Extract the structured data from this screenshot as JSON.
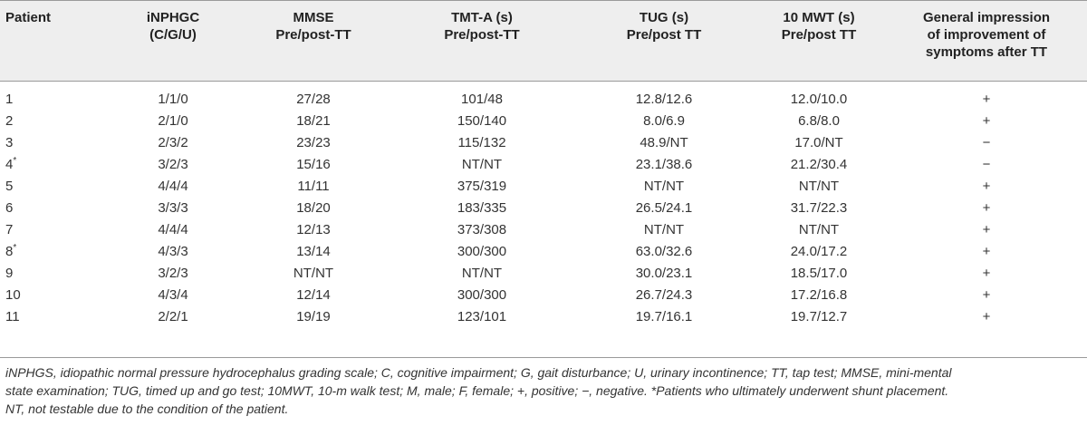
{
  "table": {
    "headers": [
      {
        "line1": "Patient",
        "line2": "",
        "line3": ""
      },
      {
        "line1": "iNPHGC",
        "line2": "(C/G/U)",
        "line3": ""
      },
      {
        "line1": "MMSE",
        "line2": "Pre/post-TT",
        "line3": ""
      },
      {
        "line1": "TMT-A (s)",
        "line2": "Pre/post-TT",
        "line3": ""
      },
      {
        "line1": "TUG (s)",
        "line2": "Pre/post TT",
        "line3": ""
      },
      {
        "line1": "10 MWT (s)",
        "line2": "Pre/post TT",
        "line3": ""
      },
      {
        "line1": "General impression",
        "line2": "of improvement of",
        "line3": "symptoms after TT"
      }
    ],
    "rows": [
      {
        "patient": "1",
        "mark": "",
        "inphgc": "1/1/0",
        "mmse": "27/28",
        "tmta": "101/48",
        "tug": "12.8/12.6",
        "mwt": "12.0/10.0",
        "impression": "+"
      },
      {
        "patient": "2",
        "mark": "",
        "inphgc": "2/1/0",
        "mmse": "18/21",
        "tmta": "150/140",
        "tug": "8.0/6.9",
        "mwt": "6.8/8.0",
        "impression": "+"
      },
      {
        "patient": "3",
        "mark": "",
        "inphgc": "2/3/2",
        "mmse": "23/23",
        "tmta": "115/132",
        "tug": "48.9/NT",
        "mwt": "17.0/NT",
        "impression": "−"
      },
      {
        "patient": "4",
        "mark": "*",
        "inphgc": "3/2/3",
        "mmse": "15/16",
        "tmta": "NT/NT",
        "tug": "23.1/38.6",
        "mwt": "21.2/30.4",
        "impression": "−"
      },
      {
        "patient": "5",
        "mark": "",
        "inphgc": "4/4/4",
        "mmse": "11/11",
        "tmta": "375/319",
        "tug": "NT/NT",
        "mwt": "NT/NT",
        "impression": "+"
      },
      {
        "patient": "6",
        "mark": "",
        "inphgc": "3/3/3",
        "mmse": "18/20",
        "tmta": "183/335",
        "tug": "26.5/24.1",
        "mwt": "31.7/22.3",
        "impression": "+"
      },
      {
        "patient": "7",
        "mark": "",
        "inphgc": "4/4/4",
        "mmse": "12/13",
        "tmta": "373/308",
        "tug": "NT/NT",
        "mwt": "NT/NT",
        "impression": "+"
      },
      {
        "patient": "8",
        "mark": "*",
        "inphgc": "4/3/3",
        "mmse": "13/14",
        "tmta": "300/300",
        "tug": "63.0/32.6",
        "mwt": "24.0/17.2",
        "impression": "+"
      },
      {
        "patient": "9",
        "mark": "",
        "inphgc": "3/2/3",
        "mmse": "NT/NT",
        "tmta": "NT/NT",
        "tug": "30.0/23.1",
        "mwt": "18.5/17.0",
        "impression": "+"
      },
      {
        "patient": "10",
        "mark": "",
        "inphgc": "4/3/4",
        "mmse": "12/14",
        "tmta": "300/300",
        "tug": "26.7/24.3",
        "mwt": "17.2/16.8",
        "impression": "+"
      },
      {
        "patient": "11",
        "mark": "",
        "inphgc": "2/2/1",
        "mmse": "19/19",
        "tmta": "123/101",
        "tug": "19.7/16.1",
        "mwt": "19.7/12.7",
        "impression": "+"
      }
    ]
  },
  "footnote": {
    "line1": "iNPHGS, idiopathic normal pressure hydrocephalus grading scale; C, cognitive impairment; G, gait disturbance; U, urinary incontinence; TT, tap test; MMSE, mini-mental",
    "line2": "state examination; TUG, timed up and go test; 10MWT, 10-m walk test; M, male; F, female; +, positive; −, negative. *Patients who ultimately underwent shunt placement.",
    "line3": "NT, not testable due to the condition of the patient."
  },
  "colors": {
    "header_band": "#eeeeee",
    "rule": "#9a9a9a",
    "text": "#222222"
  }
}
